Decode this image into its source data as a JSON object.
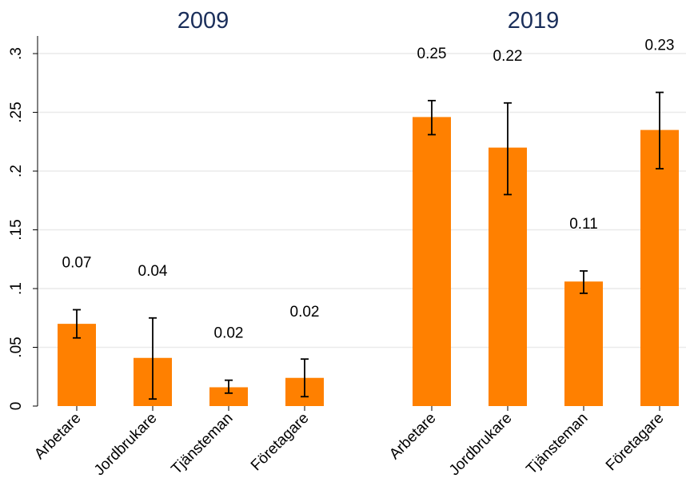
{
  "chart_data": {
    "type": "bar",
    "ylim": [
      0,
      0.315
    ],
    "yticks": [
      {
        "value": 0,
        "label": "0"
      },
      {
        "value": 0.05,
        "label": ".05"
      },
      {
        "value": 0.1,
        "label": ".1"
      },
      {
        "value": 0.15,
        "label": ".15"
      },
      {
        "value": 0.2,
        "label": ".2"
      },
      {
        "value": 0.25,
        "label": ".25"
      },
      {
        "value": 0.3,
        "label": ".3"
      }
    ],
    "grid": true,
    "bar_color": "#ff8000",
    "title_color": "#1a2e5a",
    "panels": [
      {
        "title": "2009",
        "categories": [
          "Arbetare",
          "Jordbrukare",
          "Tjänsteman",
          "Företagare"
        ],
        "values": [
          0.07,
          0.041,
          0.016,
          0.024
        ],
        "ci_low": [
          0.058,
          0.006,
          0.011,
          0.008
        ],
        "ci_high": [
          0.082,
          0.075,
          0.022,
          0.04
        ],
        "labels": [
          "0.07",
          "0.04",
          "0.02",
          "0.02"
        ]
      },
      {
        "title": "2019",
        "categories": [
          "Arbetare",
          "Jordbrukare",
          "Tjänsteman",
          "Företagare"
        ],
        "values": [
          0.246,
          0.22,
          0.106,
          0.235
        ],
        "ci_low": [
          0.231,
          0.18,
          0.096,
          0.202
        ],
        "ci_high": [
          0.26,
          0.258,
          0.115,
          0.267
        ],
        "labels": [
          "0.25",
          "0.22",
          "0.11",
          "0.23"
        ]
      }
    ]
  }
}
